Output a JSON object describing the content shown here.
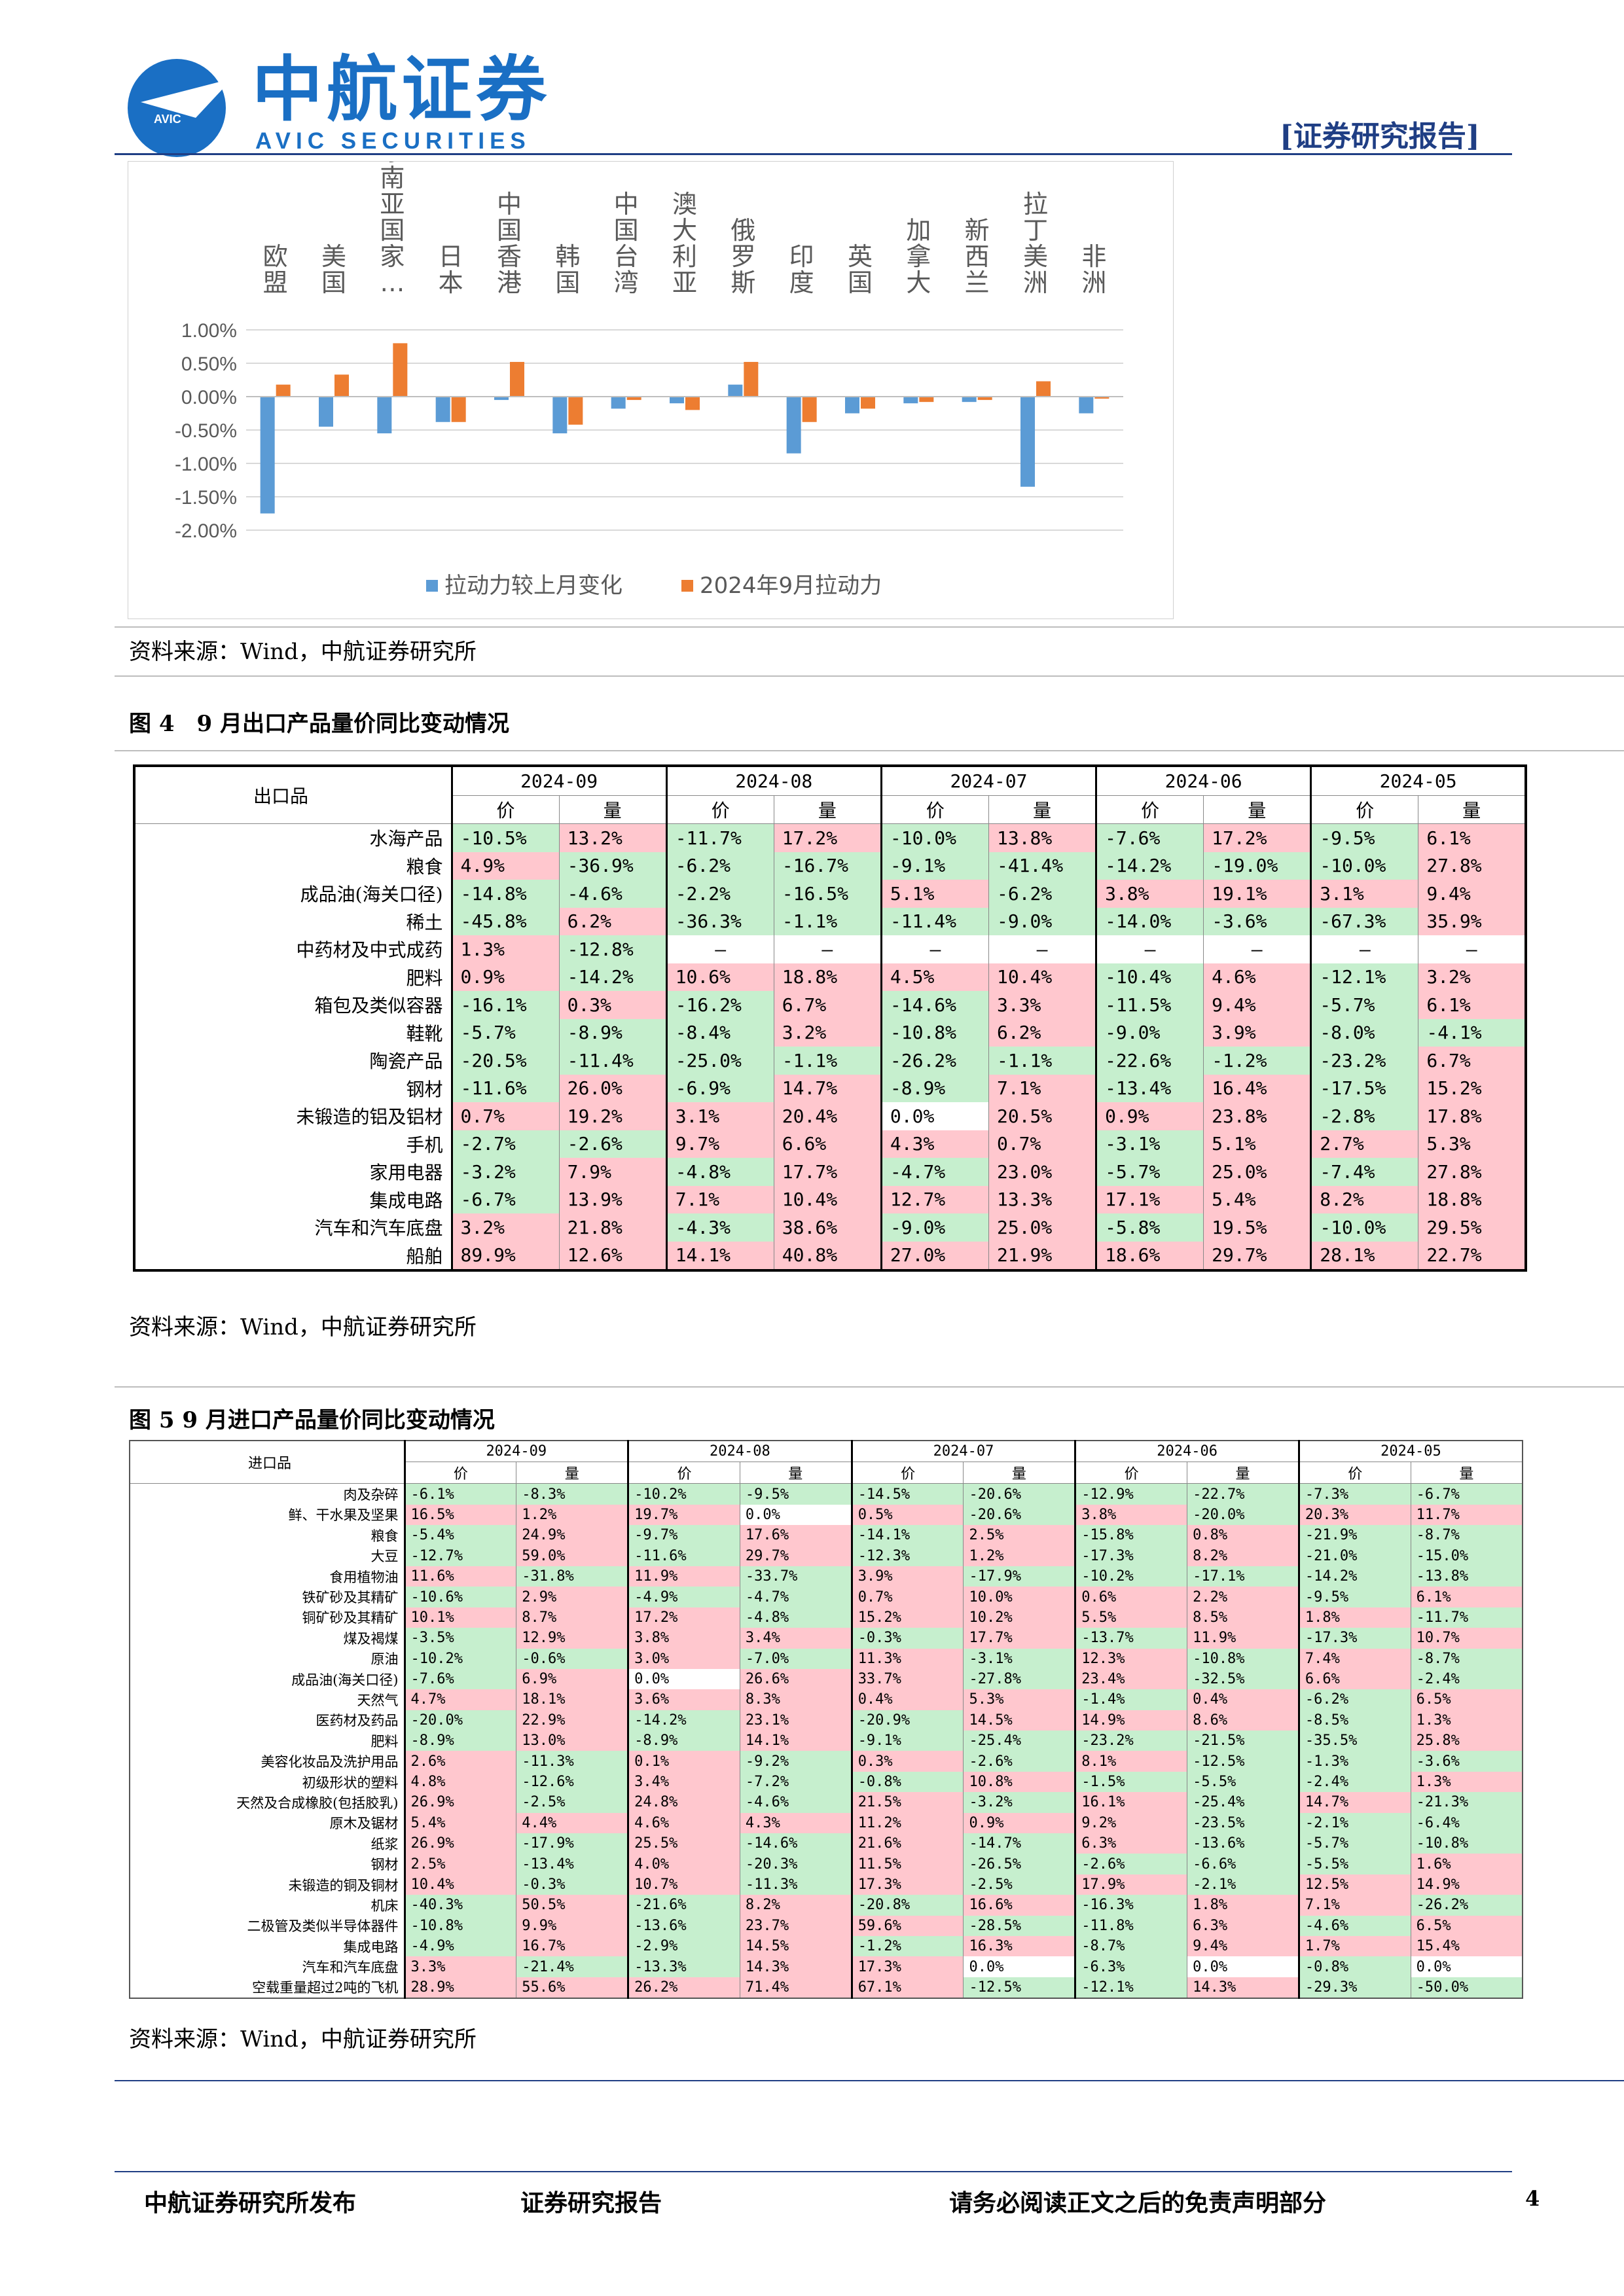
{
  "header": {
    "brand_cn": "中航证券",
    "brand_en": "AVIC SECURITIES",
    "logo_text": "AVIC",
    "report_tag": "[证券研究报告]"
  },
  "chart_data": {
    "type": "bar",
    "categories": [
      "欧盟",
      "美国",
      "东南亚国家…",
      "日本",
      "中国香港",
      "韩国",
      "中国台湾",
      "澳大利亚",
      "俄罗斯",
      "印度",
      "英国",
      "加拿大",
      "新西兰",
      "拉丁美洲",
      "非洲"
    ],
    "series": [
      {
        "name": "拉动力较上月变化",
        "color": "#5b9bd5",
        "values": [
          -1.75,
          -0.45,
          -0.55,
          -0.38,
          -0.05,
          -0.55,
          -0.18,
          -0.1,
          0.18,
          -0.85,
          -0.25,
          -0.1,
          -0.08,
          -1.35,
          -0.25
        ]
      },
      {
        "name": "2024年9月拉动力",
        "color": "#ed7d31",
        "values": [
          0.18,
          0.33,
          0.8,
          -0.38,
          0.52,
          -0.42,
          -0.05,
          -0.2,
          0.52,
          -0.38,
          -0.18,
          -0.08,
          -0.05,
          0.23,
          -0.03
        ]
      }
    ],
    "yticks": [
      "1.00%",
      "0.50%",
      "0.00%",
      "-0.50%",
      "-1.00%",
      "-1.50%",
      "-2.00%"
    ],
    "ylim": [
      -2.0,
      1.0
    ],
    "grid": true,
    "legend": "bottom"
  },
  "source1": "资料来源：Wind，中航证券研究所",
  "fig4": {
    "title": "图 4　9 月出口产品量价同比变动情况",
    "corner": "出口品",
    "months": [
      "2024-09",
      "2024-08",
      "2024-07",
      "2024-06",
      "2024-05"
    ],
    "sub": [
      "价",
      "量"
    ],
    "rows": [
      {
        "label": "水海产品",
        "v": [
          "-10.5%",
          "13.2%",
          "-11.7%",
          "17.2%",
          "-10.0%",
          "13.8%",
          "-7.6%",
          "17.2%",
          "-9.5%",
          "6.1%"
        ]
      },
      {
        "label": "粮食",
        "v": [
          "4.9%",
          "-36.9%",
          "-6.2%",
          "-16.7%",
          "-9.1%",
          "-41.4%",
          "-14.2%",
          "-19.0%",
          "-10.0%",
          "27.8%"
        ]
      },
      {
        "label": "成品油(海关口径)",
        "v": [
          "-14.8%",
          "-4.6%",
          "-2.2%",
          "-16.5%",
          "5.1%",
          "-6.2%",
          "3.8%",
          "19.1%",
          "3.1%",
          "9.4%"
        ]
      },
      {
        "label": "稀土",
        "v": [
          "-45.8%",
          "6.2%",
          "-36.3%",
          "-1.1%",
          "-11.4%",
          "-9.0%",
          "-14.0%",
          "-3.6%",
          "-67.3%",
          "35.9%"
        ]
      },
      {
        "label": "中药材及中式成药",
        "v": [
          "1.3%",
          "-12.8%",
          "-",
          "-",
          "-",
          "-",
          "-",
          "-",
          "-",
          "-"
        ]
      },
      {
        "label": "肥料",
        "v": [
          "0.9%",
          "-14.2%",
          "10.6%",
          "18.8%",
          "4.5%",
          "10.4%",
          "-10.4%",
          "4.6%",
          "-12.1%",
          "3.2%"
        ]
      },
      {
        "label": "箱包及类似容器",
        "v": [
          "-16.1%",
          "0.3%",
          "-16.2%",
          "6.7%",
          "-14.6%",
          "3.3%",
          "-11.5%",
          "9.4%",
          "-5.7%",
          "6.1%"
        ]
      },
      {
        "label": "鞋靴",
        "v": [
          "-5.7%",
          "-8.9%",
          "-8.4%",
          "3.2%",
          "-10.8%",
          "6.2%",
          "-9.0%",
          "3.9%",
          "-8.0%",
          "-4.1%"
        ]
      },
      {
        "label": "陶瓷产品",
        "v": [
          "-20.5%",
          "-11.4%",
          "-25.0%",
          "-1.1%",
          "-26.2%",
          "-1.1%",
          "-22.6%",
          "-1.2%",
          "-23.2%",
          "6.7%"
        ]
      },
      {
        "label": "钢材",
        "v": [
          "-11.6%",
          "26.0%",
          "-6.9%",
          "14.7%",
          "-8.9%",
          "7.1%",
          "-13.4%",
          "16.4%",
          "-17.5%",
          "15.2%"
        ]
      },
      {
        "label": "未锻造的铝及铝材",
        "v": [
          "0.7%",
          "19.2%",
          "3.1%",
          "20.4%",
          "0.0%",
          "20.5%",
          "0.9%",
          "23.8%",
          "-2.8%",
          "17.8%"
        ]
      },
      {
        "label": "手机",
        "v": [
          "-2.7%",
          "-2.6%",
          "9.7%",
          "6.6%",
          "4.3%",
          "0.7%",
          "-3.1%",
          "5.1%",
          "2.7%",
          "5.3%"
        ]
      },
      {
        "label": "家用电器",
        "v": [
          "-3.2%",
          "7.9%",
          "-4.8%",
          "17.7%",
          "-4.7%",
          "23.0%",
          "-5.7%",
          "25.0%",
          "-7.4%",
          "27.8%"
        ]
      },
      {
        "label": "集成电路",
        "v": [
          "-6.7%",
          "13.9%",
          "7.1%",
          "10.4%",
          "12.7%",
          "13.3%",
          "17.1%",
          "5.4%",
          "8.2%",
          "18.8%"
        ]
      },
      {
        "label": "汽车和汽车底盘",
        "v": [
          "3.2%",
          "21.8%",
          "-4.3%",
          "38.6%",
          "-9.0%",
          "25.0%",
          "-5.8%",
          "19.5%",
          "-10.0%",
          "29.5%"
        ]
      },
      {
        "label": "船舶",
        "v": [
          "89.9%",
          "12.6%",
          "14.1%",
          "40.8%",
          "27.0%",
          "21.9%",
          "18.6%",
          "29.7%",
          "28.1%",
          "22.7%"
        ]
      }
    ]
  },
  "source2": "资料来源：Wind，中航证券研究所",
  "fig5": {
    "title": "图 5 9 月进口产品量价同比变动情况",
    "corner": "进口品",
    "months": [
      "2024-09",
      "2024-08",
      "2024-07",
      "2024-06",
      "2024-05"
    ],
    "sub": [
      "价",
      "量"
    ],
    "rows": [
      {
        "label": "肉及杂碎",
        "v": [
          "-6.1%",
          "-8.3%",
          "-10.2%",
          "-9.5%",
          "-14.5%",
          "-20.6%",
          "-12.9%",
          "-22.7%",
          "-7.3%",
          "-6.7%"
        ]
      },
      {
        "label": "鲜、干水果及坚果",
        "v": [
          "16.5%",
          "1.2%",
          "19.7%",
          "0.0%",
          "0.5%",
          "-20.6%",
          "3.8%",
          "-20.0%",
          "20.3%",
          "11.7%"
        ]
      },
      {
        "label": "粮食",
        "v": [
          "-5.4%",
          "24.9%",
          "-9.7%",
          "17.6%",
          "-14.1%",
          "2.5%",
          "-15.8%",
          "0.8%",
          "-21.9%",
          "-8.7%"
        ]
      },
      {
        "label": "大豆",
        "v": [
          "-12.7%",
          "59.0%",
          "-11.6%",
          "29.7%",
          "-12.3%",
          "1.2%",
          "-17.3%",
          "8.2%",
          "-21.0%",
          "-15.0%"
        ]
      },
      {
        "label": "食用植物油",
        "v": [
          "11.6%",
          "-31.8%",
          "11.9%",
          "-33.7%",
          "3.9%",
          "-17.9%",
          "-10.2%",
          "-17.1%",
          "-14.2%",
          "-13.8%"
        ]
      },
      {
        "label": "铁矿砂及其精矿",
        "v": [
          "-10.6%",
          "2.9%",
          "-4.9%",
          "-4.7%",
          "0.7%",
          "10.0%",
          "0.6%",
          "2.2%",
          "-9.5%",
          "6.1%"
        ]
      },
      {
        "label": "铜矿砂及其精矿",
        "v": [
          "10.1%",
          "8.7%",
          "17.2%",
          "-4.8%",
          "15.2%",
          "10.2%",
          "5.5%",
          "8.5%",
          "1.8%",
          "-11.7%"
        ]
      },
      {
        "label": "煤及褐煤",
        "v": [
          "-3.5%",
          "12.9%",
          "3.8%",
          "3.4%",
          "-0.3%",
          "17.7%",
          "-13.7%",
          "11.9%",
          "-17.3%",
          "10.7%"
        ]
      },
      {
        "label": "原油",
        "v": [
          "-10.2%",
          "-0.6%",
          "3.0%",
          "-7.0%",
          "11.3%",
          "-3.1%",
          "12.3%",
          "-10.8%",
          "7.4%",
          "-8.7%"
        ]
      },
      {
        "label": "成品油(海关口径)",
        "v": [
          "-7.6%",
          "6.9%",
          "0.0%",
          "26.6%",
          "33.7%",
          "-27.8%",
          "23.4%",
          "-32.5%",
          "6.6%",
          "-2.4%"
        ]
      },
      {
        "label": "天然气",
        "v": [
          "4.7%",
          "18.1%",
          "3.6%",
          "8.3%",
          "0.4%",
          "5.3%",
          "-1.4%",
          "0.4%",
          "-6.2%",
          "6.5%"
        ]
      },
      {
        "label": "医药材及药品",
        "v": [
          "-20.0%",
          "22.9%",
          "-14.2%",
          "23.1%",
          "-20.9%",
          "14.5%",
          "14.9%",
          "8.6%",
          "-8.5%",
          "1.3%"
        ]
      },
      {
        "label": "肥料",
        "v": [
          "-8.9%",
          "13.0%",
          "-8.9%",
          "14.1%",
          "-9.1%",
          "-25.4%",
          "-23.2%",
          "-21.5%",
          "-35.5%",
          "25.8%"
        ]
      },
      {
        "label": "美容化妆品及洗护用品",
        "v": [
          "2.6%",
          "-11.3%",
          "0.1%",
          "-9.2%",
          "0.3%",
          "-2.6%",
          "8.1%",
          "-12.5%",
          "-1.3%",
          "-3.6%"
        ]
      },
      {
        "label": "初级形状的塑料",
        "v": [
          "4.8%",
          "-12.6%",
          "3.4%",
          "-7.2%",
          "-0.8%",
          "10.8%",
          "-1.5%",
          "-5.5%",
          "-2.4%",
          "1.3%"
        ]
      },
      {
        "label": "天然及合成橡胶(包括胶乳)",
        "v": [
          "26.9%",
          "-2.5%",
          "24.8%",
          "-4.6%",
          "21.5%",
          "-3.2%",
          "16.1%",
          "-25.4%",
          "14.7%",
          "-21.3%"
        ]
      },
      {
        "label": "原木及锯材",
        "v": [
          "5.4%",
          "4.4%",
          "4.6%",
          "4.3%",
          "11.2%",
          "0.9%",
          "9.2%",
          "-23.5%",
          "-2.1%",
          "-6.4%"
        ]
      },
      {
        "label": "纸浆",
        "v": [
          "26.9%",
          "-17.9%",
          "25.5%",
          "-14.6%",
          "21.6%",
          "-14.7%",
          "6.3%",
          "-13.6%",
          "-5.7%",
          "-10.8%"
        ]
      },
      {
        "label": "钢材",
        "v": [
          "2.5%",
          "-13.4%",
          "4.0%",
          "-20.3%",
          "11.5%",
          "-26.5%",
          "-2.6%",
          "-6.6%",
          "-5.5%",
          "1.6%"
        ]
      },
      {
        "label": "未锻造的铜及铜材",
        "v": [
          "10.4%",
          "-0.3%",
          "10.7%",
          "-11.3%",
          "17.3%",
          "-2.5%",
          "17.9%",
          "-2.1%",
          "12.5%",
          "14.9%"
        ]
      },
      {
        "label": "机床",
        "v": [
          "-40.3%",
          "50.5%",
          "-21.6%",
          "8.2%",
          "-20.8%",
          "16.6%",
          "-16.3%",
          "1.8%",
          "7.1%",
          "-26.2%"
        ]
      },
      {
        "label": "二极管及类似半导体器件",
        "v": [
          "-10.8%",
          "9.9%",
          "-13.6%",
          "23.7%",
          "59.6%",
          "-28.5%",
          "-11.8%",
          "6.3%",
          "-4.6%",
          "6.5%"
        ]
      },
      {
        "label": "集成电路",
        "v": [
          "-4.9%",
          "16.7%",
          "-2.9%",
          "14.5%",
          "-1.2%",
          "16.3%",
          "-8.7%",
          "9.4%",
          "1.7%",
          "15.4%"
        ]
      },
      {
        "label": "汽车和汽车底盘",
        "v": [
          "3.3%",
          "-21.4%",
          "-13.3%",
          "14.3%",
          "17.3%",
          "0.0%",
          "-6.3%",
          "0.0%",
          "-0.8%",
          "0.0%"
        ]
      },
      {
        "label": "空载重量超过2吨的飞机",
        "v": [
          "28.9%",
          "55.6%",
          "26.2%",
          "71.4%",
          "67.1%",
          "-12.5%",
          "-12.1%",
          "14.3%",
          "-29.3%",
          "-50.0%"
        ]
      }
    ]
  },
  "source3": "资料来源：Wind，中航证券研究所",
  "footer": {
    "left": "中航证券研究所发布",
    "mid": "证券研究报告",
    "right": "请务必阅读正文之后的免责声明部分",
    "page": "4"
  }
}
